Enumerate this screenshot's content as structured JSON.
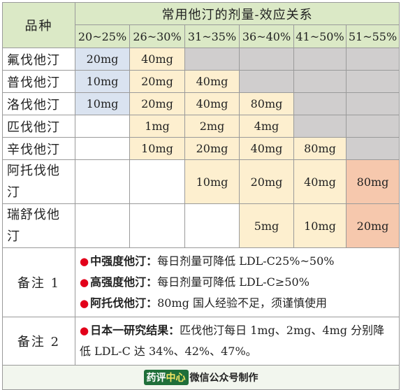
{
  "header": {
    "pinzhong": "品种",
    "title": "常用他汀的剂量-效应关系",
    "ranges": [
      "20~25%",
      "26~30%",
      "31~35%",
      "36~40%",
      "41~50%",
      "51~55%"
    ]
  },
  "drugs": [
    {
      "name": "氟伐他汀",
      "doses": [
        "20mg",
        "40mg",
        "",
        "",
        "",
        ""
      ]
    },
    {
      "name": "普伐他汀",
      "doses": [
        "10mg",
        "20mg",
        "40mg",
        "",
        "",
        ""
      ]
    },
    {
      "name": "洛伐他汀",
      "doses": [
        "10mg",
        "20mg",
        "40mg",
        "80mg",
        "",
        ""
      ]
    },
    {
      "name": "匹伐他汀",
      "doses": [
        "",
        "1mg",
        "2mg",
        "4mg",
        "",
        ""
      ]
    },
    {
      "name": "辛伐他汀",
      "doses": [
        "",
        "10mg",
        "20mg",
        "40mg",
        "80mg",
        ""
      ]
    },
    {
      "name_line1": "阿托伐他",
      "name_line2": "汀",
      "doses": [
        "",
        "",
        "10mg",
        "20mg",
        "40mg",
        "80mg"
      ]
    },
    {
      "name_line1": "瑞舒伐他",
      "name_line2": "汀",
      "doses": [
        "",
        "",
        "",
        "5mg",
        "10mg",
        "20mg"
      ]
    }
  ],
  "notes": {
    "label1": "备注 1",
    "line1_bold": "中强度他汀：",
    "line1_text": "每日剂量可降低 LDL-C25%~50%",
    "line2_bold": "高强度他汀：",
    "line2_text": "每日剂量可降低 LDL-C≥50%",
    "line3_bold": "阿托伐他汀：",
    "line3_text": "80mg 国人经验不足，须谨慎使用",
    "label2": "备注 2",
    "line4_bold": "日本一研究结果：",
    "line4_text": "匹伐他汀每日 1mg、2mg、4mg 分别降低 LDL-C 达 34%、42%、47%。",
    "bullet": "●"
  },
  "footer": {
    "logo_part1": "药评",
    "logo_part2": "中心",
    "text": "微信公众号制作"
  },
  "colors": {
    "header_green": "#dbe9c6",
    "light_blue": "#dae3f0",
    "light_yellow": "#fdefcf",
    "gray": "#d0cece",
    "orange": "#f6c8ad",
    "bullet_red": "#e2001a"
  }
}
